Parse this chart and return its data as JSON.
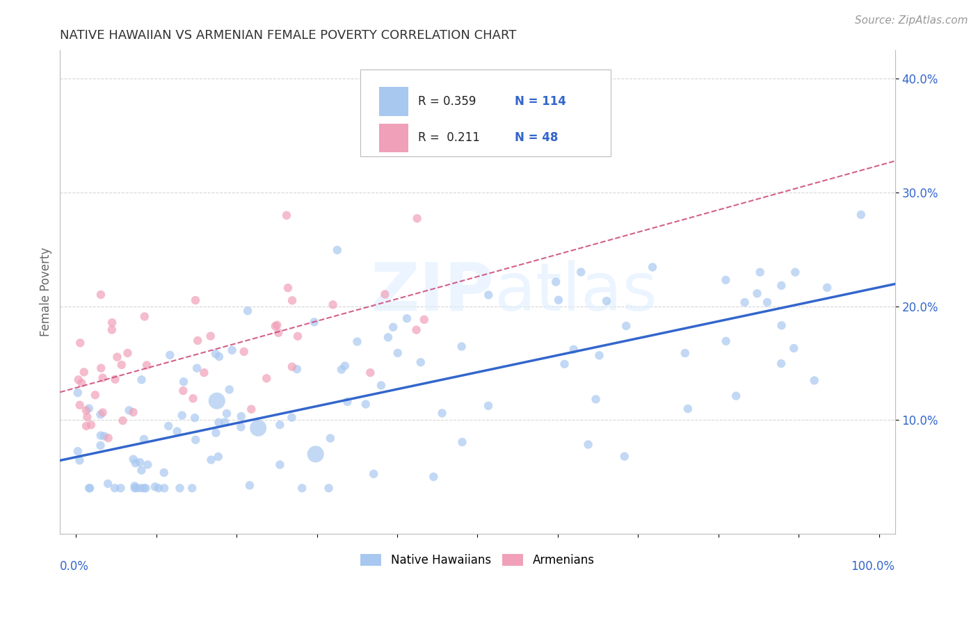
{
  "title": "NATIVE HAWAIIAN VS ARMENIAN FEMALE POVERTY CORRELATION CHART",
  "source": "Source: ZipAtlas.com",
  "ylabel": "Female Poverty",
  "y_ticks": [
    0.1,
    0.2,
    0.3,
    0.4
  ],
  "y_tick_labels": [
    "10.0%",
    "20.0%",
    "30.0%",
    "40.0%"
  ],
  "xlim": [
    -0.02,
    1.02
  ],
  "ylim": [
    0.0,
    0.425
  ],
  "legend_nh_r": "0.359",
  "legend_nh_n": "114",
  "legend_ar_r": "0.211",
  "legend_ar_n": "48",
  "nh_color": "#a8c8f0",
  "ar_color": "#f0a0b8",
  "nh_line_color": "#3366cc",
  "ar_line_color": "#cc4477",
  "background_color": "#ffffff",
  "grid_color": "#cccccc",
  "watermark": "ZIPatlas",
  "title_fontsize": 13,
  "tick_fontsize": 12,
  "source_fontsize": 11
}
